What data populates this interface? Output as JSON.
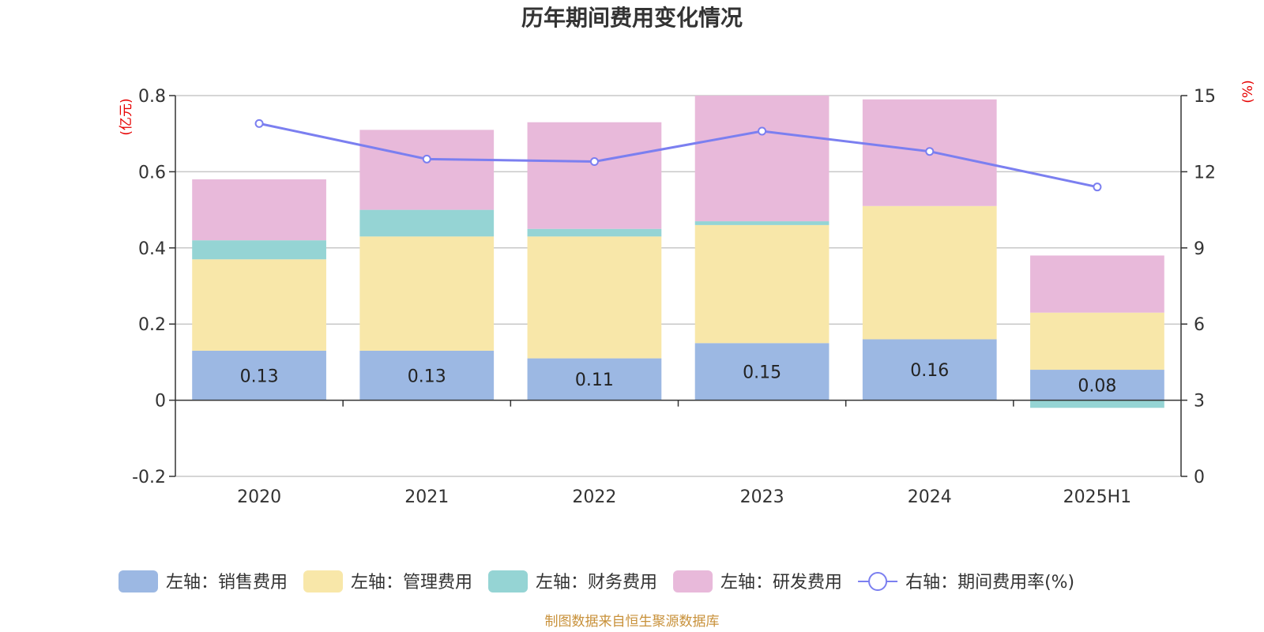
{
  "chart_data": {
    "type": "bar",
    "stacked": true,
    "title": "历年期间费用变化情况",
    "categories": [
      "2020",
      "2021",
      "2022",
      "2023",
      "2024",
      "2025H1"
    ],
    "left_axis": {
      "unit": "(亿元)",
      "ylim": [
        -0.2,
        0.8
      ],
      "ticks": [
        "-0.2",
        "0",
        "0.2",
        "0.4",
        "0.6",
        "0.8"
      ]
    },
    "right_axis": {
      "unit": "(%)",
      "ylim": [
        0,
        15
      ],
      "ticks": [
        "0",
        "3",
        "6",
        "9",
        "12",
        "15"
      ]
    },
    "grid": true,
    "legend_position": "bottom",
    "series": [
      {
        "name": "左轴：销售费用",
        "axis": "left",
        "color": "#9cb8e3",
        "values": [
          0.13,
          0.13,
          0.11,
          0.15,
          0.16,
          0.08
        ],
        "labels": [
          "0.13",
          "0.13",
          "0.11",
          "0.15",
          "0.16",
          "0.08"
        ]
      },
      {
        "name": "左轴：管理费用",
        "axis": "left",
        "color": "#f8e7a9",
        "values": [
          0.24,
          0.3,
          0.32,
          0.31,
          0.35,
          0.15
        ]
      },
      {
        "name": "左轴：财务费用",
        "axis": "left",
        "color": "#95d4d4",
        "values": [
          0.05,
          0.07,
          0.02,
          0.01,
          0.0,
          -0.02
        ]
      },
      {
        "name": "左轴：研发费用",
        "axis": "left",
        "color": "#e8b9da",
        "values": [
          0.16,
          0.21,
          0.28,
          0.33,
          0.28,
          0.15
        ]
      },
      {
        "name": "右轴：期间费用率(%)",
        "axis": "right",
        "type": "line",
        "color": "#7b7ff0",
        "values": [
          13.9,
          12.5,
          12.4,
          13.6,
          12.8,
          11.4
        ]
      }
    ]
  },
  "source": "制图数据来自恒生聚源数据库"
}
